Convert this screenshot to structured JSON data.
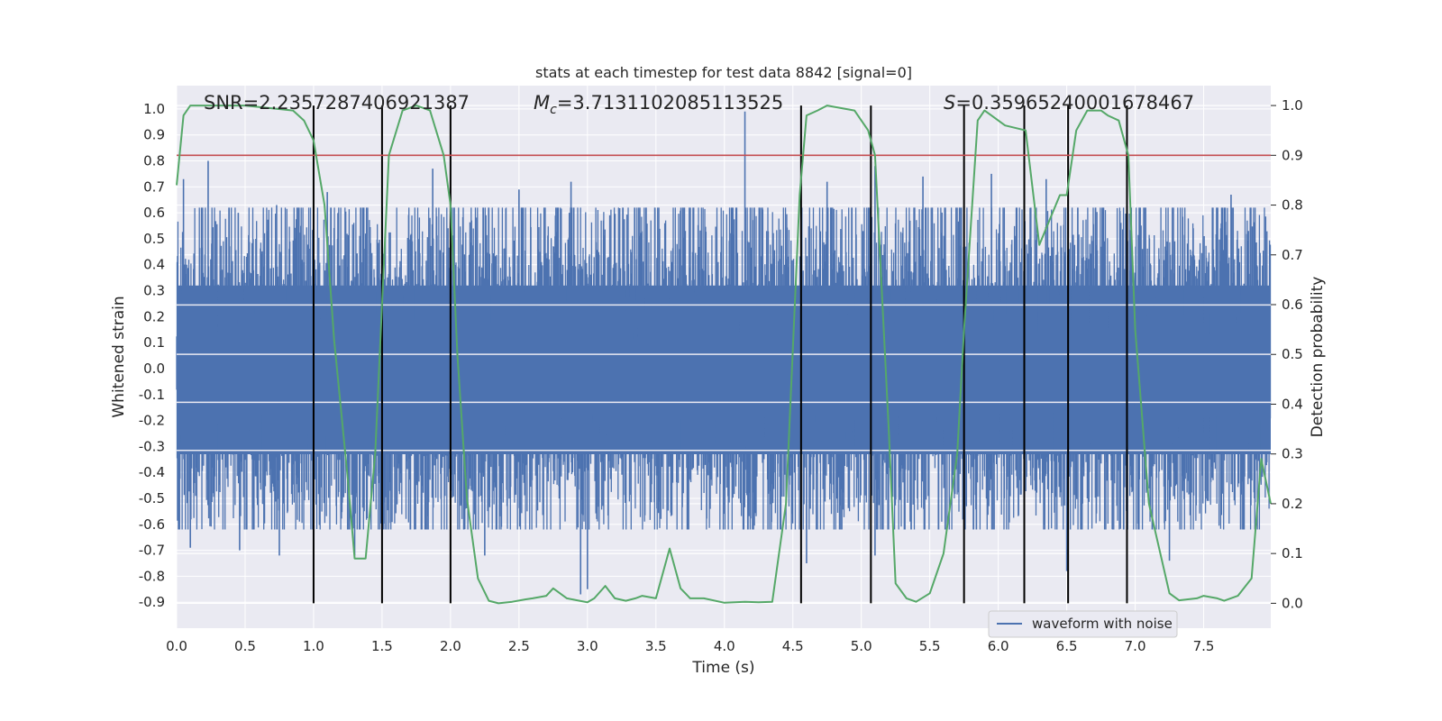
{
  "chart_data": {
    "type": "line",
    "title": "stats at each timestep for test data 8842 [signal=0]",
    "xlabel": "Time (s)",
    "ylabel": "Whitened strain",
    "y2label": "Detection probability",
    "xlim": [
      0.0,
      7.99
    ],
    "ylim": [
      -1.0,
      1.09
    ],
    "y2lim": [
      -0.05,
      1.04
    ],
    "xticks": [
      "0.0",
      "0.5",
      "1.0",
      "1.5",
      "2.0",
      "2.5",
      "3.0",
      "3.5",
      "4.0",
      "4.5",
      "5.0",
      "5.5",
      "6.0",
      "6.5",
      "7.0",
      "7.5"
    ],
    "yticks": [
      "1.0",
      "0.9",
      "0.8",
      "0.7",
      "0.6",
      "0.5",
      "0.4",
      "0.3",
      "0.2",
      "0.1",
      "0.0",
      "-0.1",
      "-0.2",
      "-0.3",
      "-0.4",
      "-0.5",
      "-0.6",
      "-0.7",
      "-0.8",
      "-0.9"
    ],
    "y2ticks": [
      "1.0",
      "0.9",
      "0.8",
      "0.7",
      "0.6",
      "0.5",
      "0.4",
      "0.3",
      "0.2",
      "0.1",
      "0.0"
    ],
    "annotations": {
      "snr": "SNR=2.2357287406921387",
      "mc_symbol": "M",
      "mc_sub": "c",
      "mc_value": "=3.7131102085113525",
      "s_symbol": "S",
      "s_value": "=0.35965240001678467"
    },
    "legend": {
      "label": "waveform with noise",
      "position": "bottom-right",
      "color": "#4c72b0"
    },
    "waveform": {
      "name": "waveform with noise",
      "color": "#4c72b0",
      "envelope_typical": 0.43,
      "core_band": [
        -0.33,
        0.32
      ],
      "spikes": [
        {
          "x": 0.05,
          "y": 0.73
        },
        {
          "x": 0.23,
          "y": 0.8
        },
        {
          "x": 0.45,
          "y": 0.6
        },
        {
          "x": 0.73,
          "y": 0.63
        },
        {
          "x": 1.1,
          "y": 0.68
        },
        {
          "x": 1.87,
          "y": 0.77
        },
        {
          "x": 2.5,
          "y": 0.69
        },
        {
          "x": 2.88,
          "y": 0.72
        },
        {
          "x": 4.15,
          "y": 0.99
        },
        {
          "x": 4.75,
          "y": 0.72
        },
        {
          "x": 5.1,
          "y": 0.78
        },
        {
          "x": 5.45,
          "y": 0.74
        },
        {
          "x": 5.95,
          "y": 0.75
        },
        {
          "x": 6.35,
          "y": 0.73
        },
        {
          "x": 7.7,
          "y": 0.67
        },
        {
          "x": 0.1,
          "y": -0.69
        },
        {
          "x": 0.46,
          "y": -0.7
        },
        {
          "x": 0.75,
          "y": -0.72
        },
        {
          "x": 1.3,
          "y": -0.72
        },
        {
          "x": 2.25,
          "y": -0.72
        },
        {
          "x": 2.95,
          "y": -0.87
        },
        {
          "x": 3.0,
          "y": -0.85
        },
        {
          "x": 4.6,
          "y": -0.75
        },
        {
          "x": 5.1,
          "y": -0.72
        },
        {
          "x": 6.5,
          "y": -0.78
        },
        {
          "x": 7.25,
          "y": -0.74
        }
      ]
    },
    "probability": {
      "color": "#55a868",
      "x": [
        0.0,
        0.05,
        0.1,
        0.2,
        0.5,
        0.85,
        0.93,
        1.0,
        1.08,
        1.15,
        1.25,
        1.3,
        1.38,
        1.45,
        1.55,
        1.65,
        1.75,
        1.85,
        1.95,
        2.0,
        2.05,
        2.12,
        2.2,
        2.28,
        2.35,
        2.45,
        2.55,
        2.6,
        2.7,
        2.75,
        2.85,
        3.0,
        3.05,
        3.13,
        3.2,
        3.28,
        3.35,
        3.4,
        3.5,
        3.6,
        3.68,
        3.75,
        3.85,
        4.0,
        4.15,
        4.25,
        4.35,
        4.45,
        4.55,
        4.6,
        4.68,
        4.75,
        4.95,
        5.05,
        5.1,
        5.2,
        5.25,
        5.33,
        5.4,
        5.5,
        5.6,
        5.7,
        5.75,
        5.85,
        5.9,
        5.95,
        6.05,
        6.2,
        6.3,
        6.45,
        6.5,
        6.57,
        6.65,
        6.75,
        6.8,
        6.88,
        6.95,
        7.0,
        7.1,
        7.25,
        7.32,
        7.45,
        7.5,
        7.6,
        7.65,
        7.75,
        7.85,
        7.92,
        7.99
      ],
      "y": [
        0.84,
        0.98,
        1.0,
        1.0,
        1.0,
        0.99,
        0.97,
        0.93,
        0.8,
        0.53,
        0.25,
        0.09,
        0.09,
        0.3,
        0.9,
        0.99,
        1.0,
        0.99,
        0.9,
        0.8,
        0.5,
        0.21,
        0.05,
        0.005,
        0.0,
        0.003,
        0.008,
        0.01,
        0.015,
        0.03,
        0.01,
        0.002,
        0.01,
        0.035,
        0.01,
        0.005,
        0.01,
        0.015,
        0.01,
        0.11,
        0.03,
        0.01,
        0.01,
        0.001,
        0.003,
        0.002,
        0.003,
        0.2,
        0.82,
        0.98,
        0.99,
        1.0,
        0.99,
        0.95,
        0.9,
        0.35,
        0.04,
        0.01,
        0.003,
        0.02,
        0.1,
        0.3,
        0.55,
        0.97,
        0.99,
        0.98,
        0.96,
        0.95,
        0.72,
        0.82,
        0.82,
        0.95,
        0.99,
        0.99,
        0.98,
        0.97,
        0.9,
        0.55,
        0.2,
        0.02,
        0.006,
        0.01,
        0.015,
        0.01,
        0.005,
        0.015,
        0.05,
        0.29,
        0.2
      ]
    },
    "threshold": {
      "value": 0.9,
      "axis": "y2",
      "color": "#c44e52"
    },
    "vlines": [
      1.0,
      1.5,
      2.0,
      4.56,
      5.07,
      5.75,
      6.19,
      6.51,
      6.94
    ],
    "vline_color": "#000000"
  }
}
